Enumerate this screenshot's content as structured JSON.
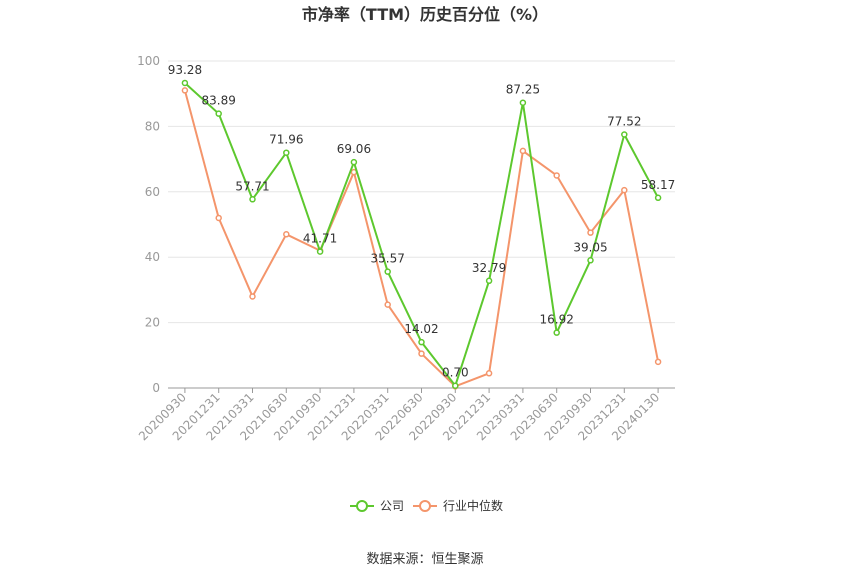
{
  "chart_data": {
    "type": "line",
    "title": "市净率（TTM）历史百分位（%）",
    "categories": [
      "20200930",
      "20201231",
      "20210331",
      "20210630",
      "20210930",
      "20211231",
      "20220331",
      "20220630",
      "20220930",
      "20221231",
      "20230331",
      "20230630",
      "20230930",
      "20231231",
      "20240130"
    ],
    "ylim": [
      0,
      100
    ],
    "yticks": [
      0,
      20,
      40,
      60,
      80,
      100
    ],
    "grid": true,
    "legend_position": "bottom",
    "series": [
      {
        "name": "公司",
        "color": "#5dc82e",
        "values": [
          93.28,
          83.89,
          57.71,
          71.96,
          41.71,
          69.06,
          35.57,
          14.02,
          0.7,
          32.79,
          87.25,
          16.92,
          39.05,
          77.52,
          58.17
        ],
        "labels": [
          "93.28",
          "83.89",
          "57.71",
          "71.96",
          "41.71",
          "69.06",
          "35.57",
          "14.02",
          "0.70",
          "32.79",
          "87.25",
          "16.92",
          "39.05",
          "77.52",
          "58.17"
        ]
      },
      {
        "name": "行业中位数",
        "color": "#f4956b",
        "values": [
          91,
          52,
          28,
          47,
          42,
          66,
          25.5,
          10.5,
          0.5,
          4.5,
          72.5,
          65,
          47.5,
          60.5,
          8
        ]
      }
    ]
  },
  "source_text": "数据来源：恒生聚源"
}
